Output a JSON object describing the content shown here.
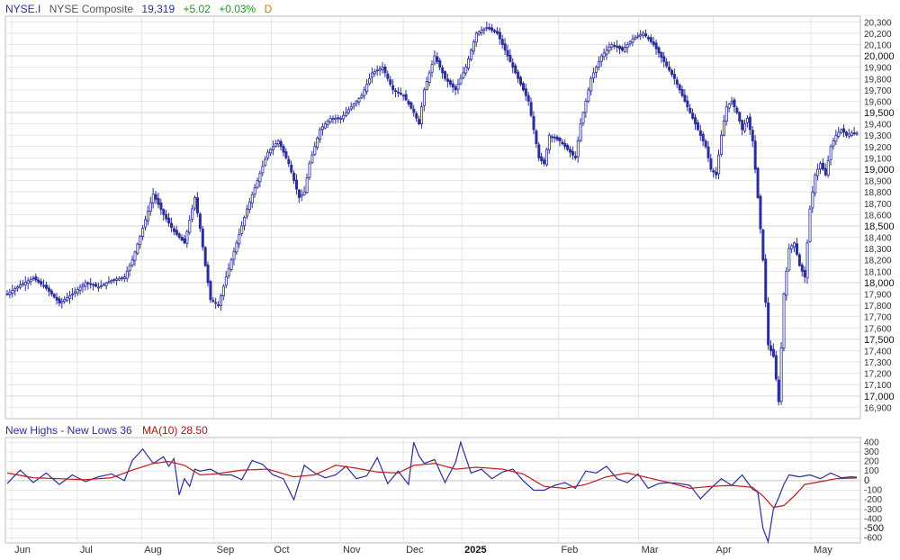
{
  "header": {
    "symbol": "NYSE.I",
    "name": "NYSE Composite",
    "last": "19,319",
    "change": "+5.02",
    "change_pct": "+0.03%",
    "period": "D"
  },
  "indicator_header": {
    "name": "New Highs - New Lows 36",
    "ma": "MA(10) 28.50"
  },
  "colors": {
    "candle": "#2b2e9a",
    "nhnl": "#2b2e9a",
    "ma": "#c01818",
    "grid": "#e4e4e4"
  },
  "chart_data": [
    {
      "type": "candlestick",
      "title": "NYSE Composite",
      "ylim": [
        16800,
        20350
      ],
      "y_ticks": [
        16900,
        17000,
        17100,
        17200,
        17300,
        17400,
        17500,
        17600,
        17700,
        17800,
        17900,
        18000,
        18100,
        18200,
        18300,
        18400,
        18500,
        18600,
        18700,
        18800,
        18900,
        19000,
        19100,
        19200,
        19300,
        19400,
        19500,
        19600,
        19700,
        19800,
        19900,
        20000,
        20100,
        20200,
        20300
      ],
      "y_tick_labels": [
        "16,900",
        "17,000",
        "17,100",
        "17,200",
        "17,300",
        "17,400",
        "17,500",
        "17,600",
        "17,700",
        "17,800",
        "17,900",
        "18,000",
        "18,100",
        "18,200",
        "18,300",
        "18,400",
        "18,500",
        "18,600",
        "18,700",
        "18,800",
        "18,900",
        "19,000",
        "19,100",
        "19,200",
        "19,300",
        "19,400",
        "19,500",
        "19,600",
        "19,700",
        "19,800",
        "19,900",
        "20,000",
        "20,100",
        "20,200",
        "20,300"
      ],
      "major_y_ticks": [
        17000,
        17500,
        18000,
        18500,
        19000,
        19500,
        20000
      ],
      "x_labels": [
        "Jun",
        "Jul",
        "Aug",
        "Sep",
        "Oct",
        "Nov",
        "Dec",
        "2025",
        "Feb",
        "Mar",
        "Apr",
        "May"
      ],
      "close_path": [
        [
          0,
          17900
        ],
        [
          5,
          17980
        ],
        [
          10,
          18040
        ],
        [
          15,
          17950
        ],
        [
          20,
          17820
        ],
        [
          25,
          17900
        ],
        [
          30,
          18000
        ],
        [
          35,
          17960
        ],
        [
          40,
          18020
        ],
        [
          45,
          18050
        ],
        [
          48,
          18200
        ],
        [
          52,
          18480
        ],
        [
          56,
          18780
        ],
        [
          60,
          18600
        ],
        [
          64,
          18450
        ],
        [
          68,
          18350
        ],
        [
          70,
          18550
        ],
        [
          72,
          18750
        ],
        [
          74,
          18480
        ],
        [
          76,
          18150
        ],
        [
          78,
          17850
        ],
        [
          81,
          17800
        ],
        [
          84,
          18050
        ],
        [
          88,
          18350
        ],
        [
          92,
          18650
        ],
        [
          96,
          18900
        ],
        [
          100,
          19150
        ],
        [
          104,
          19250
        ],
        [
          108,
          19050
        ],
        [
          112,
          18750
        ],
        [
          114,
          18800
        ],
        [
          116,
          19050
        ],
        [
          120,
          19350
        ],
        [
          124,
          19450
        ],
        [
          128,
          19450
        ],
        [
          132,
          19550
        ],
        [
          136,
          19650
        ],
        [
          140,
          19850
        ],
        [
          144,
          19900
        ],
        [
          148,
          19700
        ],
        [
          152,
          19650
        ],
        [
          156,
          19500
        ],
        [
          158,
          19400
        ],
        [
          160,
          19700
        ],
        [
          164,
          20000
        ],
        [
          168,
          19800
        ],
        [
          172,
          19700
        ],
        [
          176,
          19900
        ],
        [
          180,
          20200
        ],
        [
          184,
          20250
        ],
        [
          188,
          20200
        ],
        [
          192,
          20000
        ],
        [
          196,
          19800
        ],
        [
          200,
          19600
        ],
        [
          202,
          19350
        ],
        [
          204,
          19100
        ],
        [
          206,
          19050
        ],
        [
          208,
          19300
        ],
        [
          212,
          19250
        ],
        [
          216,
          19150
        ],
        [
          218,
          19100
        ],
        [
          220,
          19400
        ],
        [
          224,
          19800
        ],
        [
          228,
          20000
        ],
        [
          232,
          20100
        ],
        [
          236,
          20050
        ],
        [
          240,
          20150
        ],
        [
          244,
          20200
        ],
        [
          248,
          20100
        ],
        [
          252,
          19950
        ],
        [
          256,
          19800
        ],
        [
          260,
          19600
        ],
        [
          264,
          19400
        ],
        [
          268,
          19200
        ],
        [
          270,
          19000
        ],
        [
          272,
          18950
        ],
        [
          274,
          19300
        ],
        [
          276,
          19550
        ],
        [
          278,
          19600
        ],
        [
          280,
          19500
        ],
        [
          282,
          19350
        ],
        [
          284,
          19450
        ],
        [
          286,
          19250
        ],
        [
          288,
          18750
        ],
        [
          290,
          18200
        ],
        [
          292,
          17450
        ],
        [
          294,
          17350
        ],
        [
          296,
          16950
        ],
        [
          298,
          17900
        ],
        [
          300,
          18300
        ],
        [
          302,
          18350
        ],
        [
          304,
          18150
        ],
        [
          306,
          18050
        ],
        [
          308,
          18650
        ],
        [
          310,
          18950
        ],
        [
          312,
          19050
        ],
        [
          314,
          18950
        ],
        [
          316,
          19200
        ],
        [
          318,
          19300
        ],
        [
          320,
          19350
        ],
        [
          322,
          19300
        ],
        [
          324,
          19320
        ],
        [
          326,
          19319
        ]
      ],
      "last_index": 326
    },
    {
      "type": "line",
      "ylim": [
        -650,
        450
      ],
      "y_ticks": [
        -600,
        -500,
        -400,
        -300,
        -200,
        -100,
        0,
        100,
        200,
        300,
        400
      ],
      "y_tick_labels": [
        "-600",
        "-500",
        "-400",
        "-300",
        "-200",
        "-100",
        "0",
        "100",
        "200",
        "300",
        "400"
      ],
      "series": [
        {
          "name": "New Highs - New Lows 36",
          "path": [
            [
              0,
              -30
            ],
            [
              5,
              110
            ],
            [
              10,
              -20
            ],
            [
              15,
              80
            ],
            [
              20,
              -40
            ],
            [
              25,
              60
            ],
            [
              30,
              -10
            ],
            [
              35,
              40
            ],
            [
              40,
              70
            ],
            [
              45,
              0
            ],
            [
              48,
              210
            ],
            [
              52,
              330
            ],
            [
              56,
              180
            ],
            [
              60,
              250
            ],
            [
              62,
              150
            ],
            [
              64,
              230
            ],
            [
              66,
              -150
            ],
            [
              68,
              20
            ],
            [
              70,
              -60
            ],
            [
              72,
              120
            ],
            [
              74,
              100
            ],
            [
              78,
              120
            ],
            [
              82,
              60
            ],
            [
              86,
              60
            ],
            [
              90,
              10
            ],
            [
              94,
              210
            ],
            [
              98,
              170
            ],
            [
              102,
              60
            ],
            [
              106,
              20
            ],
            [
              110,
              -200
            ],
            [
              114,
              160
            ],
            [
              118,
              80
            ],
            [
              122,
              30
            ],
            [
              126,
              60
            ],
            [
              130,
              150
            ],
            [
              134,
              20
            ],
            [
              138,
              50
            ],
            [
              142,
              240
            ],
            [
              146,
              -30
            ],
            [
              150,
              100
            ],
            [
              154,
              -40
            ],
            [
              156,
              400
            ],
            [
              158,
              260
            ],
            [
              160,
              180
            ],
            [
              164,
              220
            ],
            [
              168,
              -20
            ],
            [
              172,
              190
            ],
            [
              174,
              400
            ],
            [
              178,
              80
            ],
            [
              182,
              120
            ],
            [
              186,
              20
            ],
            [
              190,
              90
            ],
            [
              194,
              120
            ],
            [
              198,
              0
            ],
            [
              202,
              -100
            ],
            [
              206,
              -100
            ],
            [
              210,
              -50
            ],
            [
              214,
              -20
            ],
            [
              218,
              -80
            ],
            [
              222,
              100
            ],
            [
              226,
              80
            ],
            [
              230,
              150
            ],
            [
              234,
              20
            ],
            [
              238,
              -20
            ],
            [
              242,
              70
            ],
            [
              246,
              -80
            ],
            [
              250,
              -30
            ],
            [
              254,
              -20
            ],
            [
              258,
              -30
            ],
            [
              262,
              -50
            ],
            [
              266,
              -190
            ],
            [
              270,
              -80
            ],
            [
              274,
              20
            ],
            [
              278,
              -50
            ],
            [
              282,
              60
            ],
            [
              286,
              -90
            ],
            [
              288,
              -120
            ],
            [
              290,
              -500
            ],
            [
              292,
              -640
            ],
            [
              294,
              -300
            ],
            [
              296,
              -180
            ],
            [
              298,
              -40
            ],
            [
              300,
              60
            ],
            [
              304,
              40
            ],
            [
              308,
              60
            ],
            [
              312,
              20
            ],
            [
              316,
              80
            ],
            [
              320,
              30
            ],
            [
              324,
              40
            ],
            [
              326,
              36
            ]
          ]
        },
        {
          "name": "MA(10)",
          "path": [
            [
              0,
              80
            ],
            [
              10,
              30
            ],
            [
              20,
              20
            ],
            [
              30,
              10
            ],
            [
              40,
              30
            ],
            [
              48,
              110
            ],
            [
              56,
              180
            ],
            [
              62,
              200
            ],
            [
              68,
              160
            ],
            [
              74,
              60
            ],
            [
              80,
              70
            ],
            [
              90,
              110
            ],
            [
              100,
              120
            ],
            [
              110,
              40
            ],
            [
              118,
              60
            ],
            [
              126,
              160
            ],
            [
              134,
              130
            ],
            [
              142,
              90
            ],
            [
              150,
              80
            ],
            [
              156,
              160
            ],
            [
              164,
              180
            ],
            [
              172,
              120
            ],
            [
              180,
              140
            ],
            [
              190,
              120
            ],
            [
              198,
              70
            ],
            [
              206,
              -60
            ],
            [
              214,
              -80
            ],
            [
              222,
              -40
            ],
            [
              230,
              40
            ],
            [
              238,
              80
            ],
            [
              246,
              30
            ],
            [
              254,
              -20
            ],
            [
              262,
              -80
            ],
            [
              270,
              -60
            ],
            [
              278,
              -50
            ],
            [
              286,
              -70
            ],
            [
              290,
              -160
            ],
            [
              294,
              -280
            ],
            [
              298,
              -260
            ],
            [
              302,
              -160
            ],
            [
              306,
              -40
            ],
            [
              312,
              -10
            ],
            [
              318,
              20
            ],
            [
              326,
              28
            ]
          ]
        }
      ]
    }
  ]
}
